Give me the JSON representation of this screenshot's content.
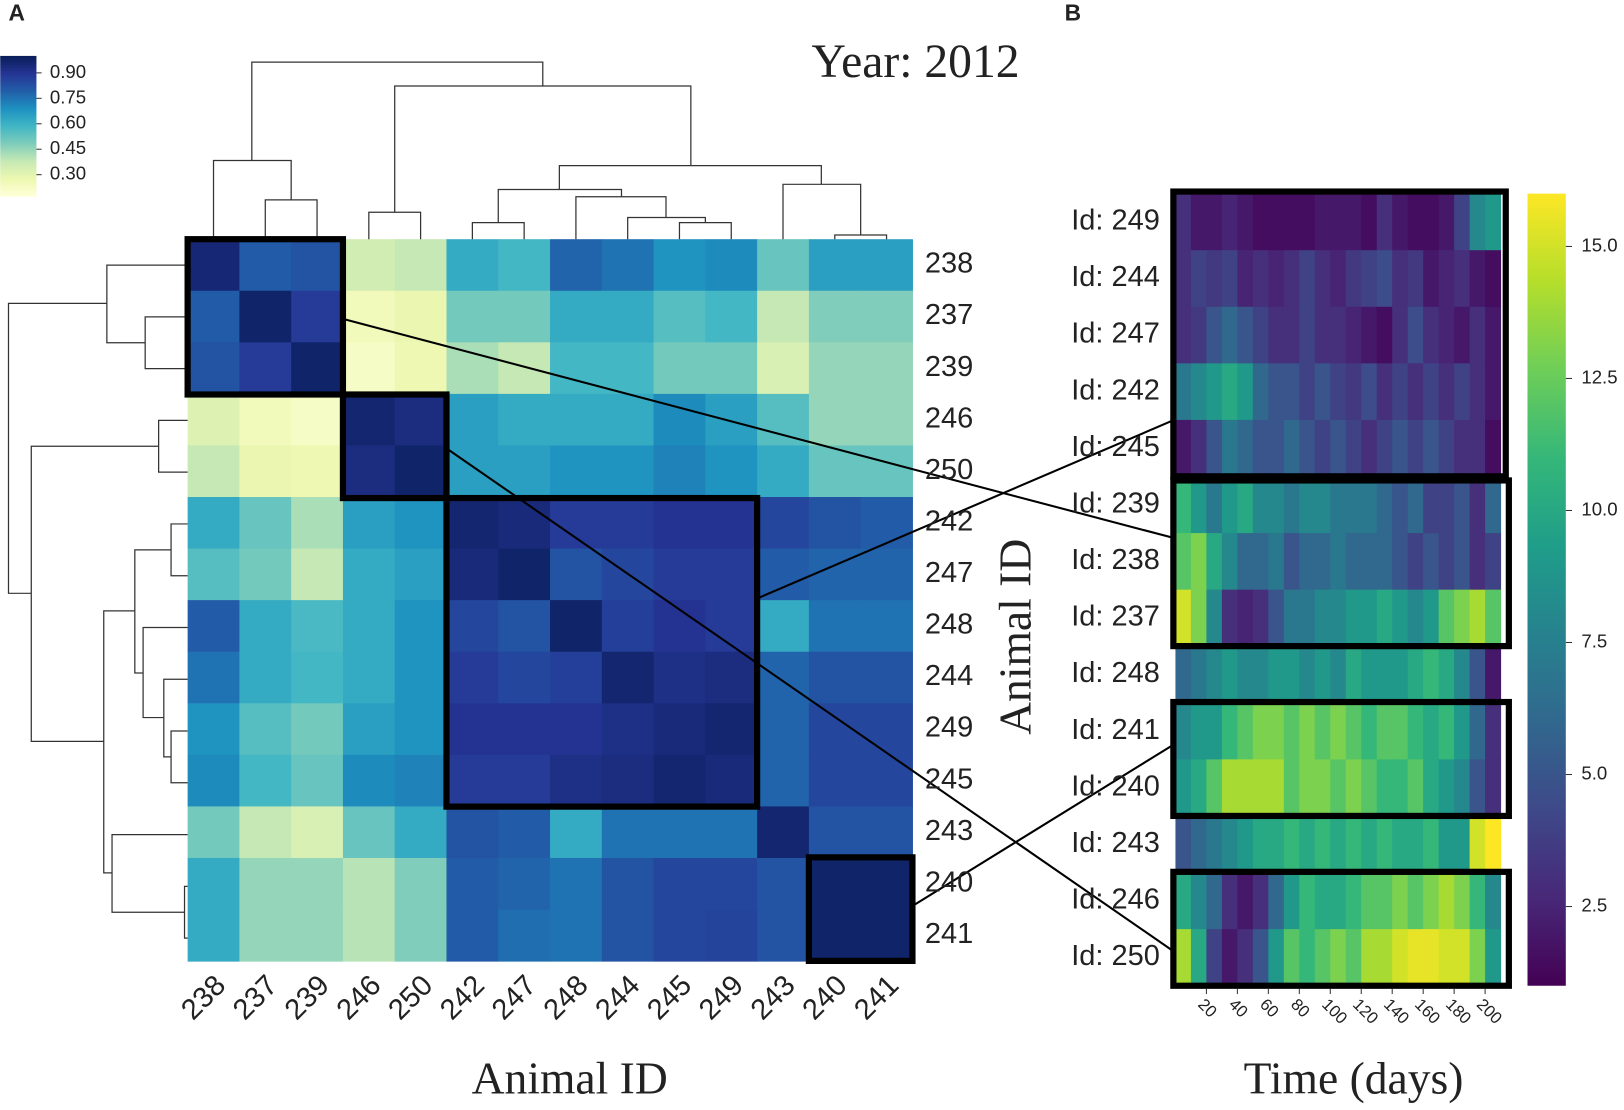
{
  "chart_data": [
    {
      "type": "heatmap",
      "panel": "A",
      "title": "Year: 2012",
      "x_label": "Animal ID",
      "colorscale": "YlGnBu",
      "x_categories": [
        "238",
        "237",
        "239",
        "246",
        "250",
        "242",
        "247",
        "248",
        "244",
        "245",
        "249",
        "243",
        "240",
        "241"
      ],
      "y_categories": [
        "238",
        "237",
        "239",
        "246",
        "250",
        "242",
        "247",
        "248",
        "244",
        "249",
        "245",
        "243",
        "240",
        "241"
      ],
      "values": [
        [
          0.95,
          0.8,
          0.82,
          0.35,
          0.38,
          0.62,
          0.58,
          0.78,
          0.75,
          0.68,
          0.7,
          0.52,
          0.65,
          0.65
        ],
        [
          0.8,
          0.97,
          0.88,
          0.25,
          0.28,
          0.5,
          0.5,
          0.62,
          0.62,
          0.55,
          0.58,
          0.38,
          0.48,
          0.48
        ],
        [
          0.82,
          0.88,
          0.97,
          0.22,
          0.27,
          0.42,
          0.38,
          0.58,
          0.58,
          0.5,
          0.5,
          0.33,
          0.45,
          0.45
        ],
        [
          0.32,
          0.25,
          0.22,
          0.96,
          0.93,
          0.65,
          0.62,
          0.62,
          0.62,
          0.7,
          0.65,
          0.55,
          0.45,
          0.45
        ],
        [
          0.38,
          0.28,
          0.27,
          0.93,
          0.97,
          0.65,
          0.65,
          0.68,
          0.68,
          0.72,
          0.68,
          0.62,
          0.52,
          0.52
        ],
        [
          0.62,
          0.52,
          0.42,
          0.65,
          0.68,
          0.96,
          0.94,
          0.88,
          0.88,
          0.9,
          0.9,
          0.85,
          0.82,
          0.8
        ],
        [
          0.55,
          0.5,
          0.38,
          0.62,
          0.65,
          0.94,
          0.97,
          0.82,
          0.85,
          0.88,
          0.88,
          0.8,
          0.78,
          0.78
        ],
        [
          0.8,
          0.62,
          0.57,
          0.62,
          0.68,
          0.85,
          0.82,
          0.97,
          0.87,
          0.9,
          0.88,
          0.62,
          0.75,
          0.75
        ],
        [
          0.75,
          0.62,
          0.58,
          0.62,
          0.68,
          0.88,
          0.85,
          0.87,
          0.96,
          0.92,
          0.93,
          0.78,
          0.82,
          0.82
        ],
        [
          0.68,
          0.55,
          0.5,
          0.65,
          0.68,
          0.9,
          0.9,
          0.9,
          0.92,
          0.94,
          0.96,
          0.78,
          0.85,
          0.85
        ],
        [
          0.7,
          0.58,
          0.52,
          0.7,
          0.72,
          0.88,
          0.88,
          0.92,
          0.93,
          0.96,
          0.94,
          0.78,
          0.85,
          0.85
        ],
        [
          0.5,
          0.38,
          0.33,
          0.52,
          0.62,
          0.82,
          0.8,
          0.62,
          0.75,
          0.75,
          0.75,
          0.96,
          0.82,
          0.82
        ],
        [
          0.62,
          0.45,
          0.45,
          0.4,
          0.48,
          0.8,
          0.78,
          0.75,
          0.82,
          0.85,
          0.85,
          0.82,
          0.97,
          0.97
        ],
        [
          0.62,
          0.45,
          0.45,
          0.4,
          0.48,
          0.8,
          0.76,
          0.75,
          0.82,
          0.85,
          0.86,
          0.82,
          0.97,
          0.97
        ]
      ],
      "zlim": [
        0.17,
        1.0
      ],
      "zticks": [
        {
          "value": 0.9,
          "label": "0.90"
        },
        0.75,
        {
          "value": 0.6,
          "label": "0.60"
        },
        0.45,
        {
          "value": 0.3,
          "label": "0.30"
        }
      ]
    },
    {
      "type": "heatmap",
      "panel": "B",
      "x_label": "Time (days)",
      "y_label": "Animal ID",
      "colorscale": "viridis",
      "categories": [
        "Id: 249",
        "Id: 244",
        "Id: 247",
        "Id: 242",
        "Id: 245",
        "Id: 239",
        "Id: 238",
        "Id: 237",
        "Id: 248",
        "Id: 241",
        "Id: 240",
        "Id: 243",
        "Id: 246",
        "Id: 250"
      ],
      "bins": [
        0,
        10,
        20,
        30,
        40,
        50,
        60,
        70,
        80,
        90,
        100,
        110,
        120,
        130,
        140,
        150,
        160,
        170,
        180,
        190,
        200,
        210
      ],
      "xlim": [
        0,
        212
      ],
      "xticks": [
        20,
        40,
        60,
        80,
        100,
        120,
        140,
        160,
        180,
        200
      ],
      "values": [
        [
          3,
          2,
          2,
          2.5,
          2,
          1.5,
          1.5,
          1.5,
          1.5,
          2,
          2,
          2,
          1.5,
          3,
          2,
          1.5,
          1.5,
          2,
          4,
          8,
          9
        ],
        [
          3,
          4,
          3.5,
          4,
          2.5,
          3,
          2.5,
          3,
          4,
          3,
          2.5,
          3.5,
          4,
          4.5,
          3,
          3.5,
          2,
          2.5,
          3,
          2,
          1.5
        ],
        [
          3,
          3.5,
          5,
          6,
          5,
          4,
          3,
          3,
          4,
          3,
          3,
          2.5,
          2,
          1.5,
          3,
          4.5,
          3,
          2.5,
          2,
          3,
          2
        ],
        [
          7,
          8,
          9,
          10,
          9,
          6,
          5,
          5,
          4,
          5,
          4,
          3.5,
          4.5,
          3,
          4,
          3,
          4,
          3,
          4,
          3,
          2
        ],
        [
          2,
          3,
          5,
          7,
          6,
          5,
          5,
          6,
          5,
          4,
          5,
          4,
          3,
          4,
          5,
          4,
          5,
          4,
          3,
          3,
          1.5
        ],
        [
          11,
          9,
          7,
          9,
          10,
          8,
          8,
          7,
          8,
          8,
          7,
          7,
          7,
          6,
          5,
          6,
          4,
          4,
          5,
          3,
          6
        ],
        [
          12,
          13,
          10,
          8,
          6,
          6,
          7,
          5,
          6,
          6,
          7,
          6,
          6,
          6,
          5,
          4,
          5,
          4,
          5,
          3,
          4
        ],
        [
          15,
          13,
          8,
          3,
          2.5,
          3,
          5,
          7,
          7,
          8,
          8,
          9,
          9,
          10,
          9,
          8,
          9,
          12,
          13,
          14,
          12
        ],
        [
          6,
          7,
          8,
          9,
          8,
          8,
          9,
          9,
          8,
          9,
          8,
          10,
          9,
          9,
          9,
          10,
          11,
          10,
          8,
          5,
          2
        ],
        [
          8,
          9,
          9,
          11,
          12,
          13,
          13,
          12,
          13,
          12,
          13,
          12,
          11,
          12,
          12,
          11,
          10,
          11,
          9,
          6,
          3
        ],
        [
          9,
          10,
          12,
          14,
          14,
          14,
          14,
          12,
          13,
          13,
          12,
          13,
          12,
          11,
          11,
          12,
          10,
          9,
          8,
          5,
          3
        ],
        [
          5,
          6,
          7,
          8,
          9,
          10,
          10,
          11,
          10,
          11,
          10,
          11,
          10,
          11,
          10,
          10,
          11,
          9,
          9,
          15,
          16
        ],
        [
          10,
          8,
          6,
          3,
          2,
          3,
          6,
          9,
          11,
          10,
          10,
          11,
          12,
          12,
          13,
          12,
          13,
          14,
          13,
          11,
          8
        ],
        [
          14,
          10,
          4,
          2,
          3,
          5,
          9,
          12,
          11,
          12,
          13,
          12,
          14,
          14,
          15,
          15.5,
          15.5,
          15,
          15,
          13,
          9
        ]
      ],
      "zlim": [
        1,
        16
      ],
      "zticks": [
        2.5,
        {
          "value": 5,
          "label": "5.0"
        },
        7.5,
        {
          "value": 10,
          "label": "10.0"
        },
        12.5,
        {
          "value": 15,
          "label": "15.0"
        }
      ]
    }
  ]
}
